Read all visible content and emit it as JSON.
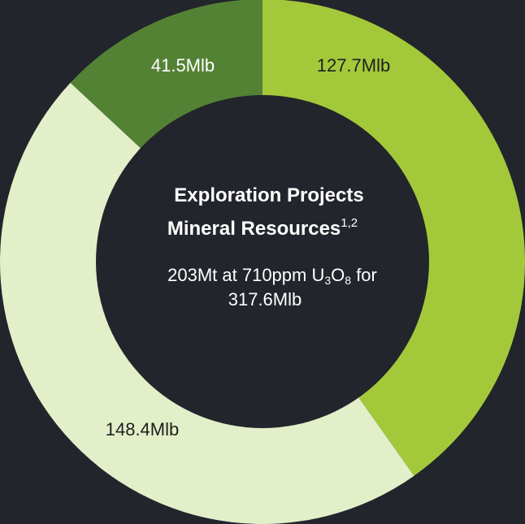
{
  "chart_data": {
    "type": "donut",
    "values": [
      127.7,
      148.4,
      41.5
    ],
    "value_labels": [
      "127.7Mlb",
      "148.4Mlb",
      "41.5Mlb"
    ],
    "colors": [
      "#a3c93b",
      "#e2efc9",
      "#548235"
    ],
    "label_colors": [
      "#1f1f1f",
      "#1f1f1f",
      "#ffffff"
    ],
    "title_lines": [
      "Exploration Projects",
      "Mineral Resources"
    ],
    "title_superscript": "1,2",
    "subtitle_lines": [
      [
        "203Mt at 710ppm U",
        "3",
        "O",
        "8",
        " for"
      ],
      [
        "317.6Mlb"
      ]
    ]
  }
}
